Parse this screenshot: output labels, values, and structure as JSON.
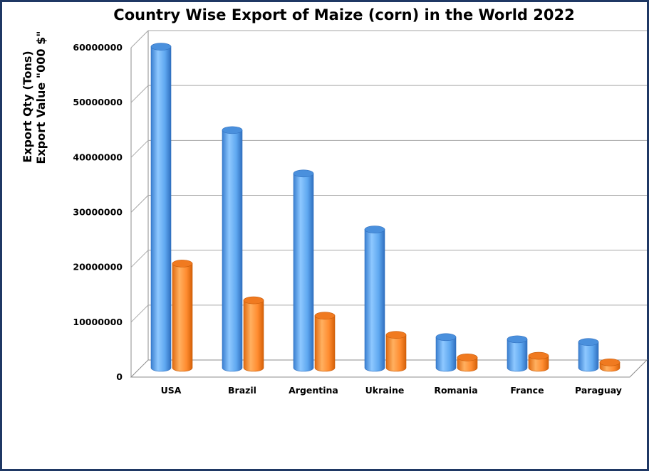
{
  "chart_data": {
    "type": "bar",
    "title": "Country Wise Export of Maize (corn) in the World 2022",
    "ylabel_lines": [
      "Export Qty (Tons)",
      "Export Value \"000 $\""
    ],
    "xlabel": "",
    "categories": [
      "USA",
      "Brazil",
      "Argentina",
      "Ukraine",
      "Romania",
      "France",
      "Paraguay"
    ],
    "series": [
      {
        "values": [
          58500000,
          43300000,
          35400000,
          25200000,
          5600000,
          5200000,
          4700000
        ],
        "color": "#5fa8f0"
      },
      {
        "values": [
          19000000,
          12300000,
          9500000,
          6000000,
          1900000,
          2200000,
          1000000
        ],
        "color": "#ff8c30"
      }
    ],
    "ylim": [
      0,
      60000000
    ],
    "yticks": [
      "0",
      "10000000",
      "20000000",
      "30000000",
      "40000000",
      "50000000",
      "60000000"
    ],
    "grid": true,
    "style": "3d-cylinder"
  }
}
